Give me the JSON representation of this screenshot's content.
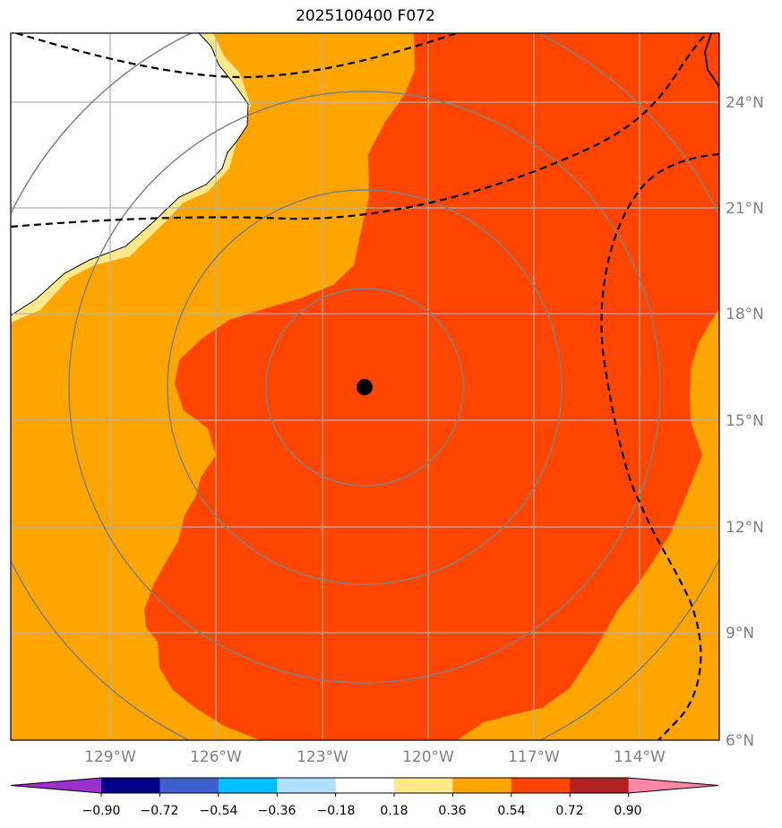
{
  "map": {
    "title": "2025100400 F072",
    "lat_labels": [
      "24°N",
      "21°N",
      "18°N",
      "15°N",
      "12°N",
      "9°N",
      "6°N"
    ],
    "lat_values": [
      24,
      21,
      18,
      15,
      12,
      9,
      6
    ],
    "lon_labels": [
      "129°W",
      "126°W",
      "123°W",
      "120°W",
      "117°W",
      "114°W"
    ],
    "lon_values": [
      -129,
      -126,
      -123,
      -120,
      -117,
      -114
    ],
    "storm_center": {
      "lat": 16.0,
      "lon": -121.7,
      "marker": "black-dot"
    },
    "range_rings": "concentric-circles",
    "boundaries": "dashed-lines",
    "coastline": "black-line"
  },
  "colorbar": {
    "tick_labels": [
      "−0.90",
      "−0.72",
      "−0.54",
      "−0.36",
      "−0.18",
      "0.18",
      "0.36",
      "0.54",
      "0.72",
      "0.90"
    ],
    "colors": [
      "#9932cc",
      "#00008b",
      "#3f5fcf",
      "#00bfff",
      "#b0e0ff",
      "#ffffff",
      "#ffe98a",
      "#ffa500",
      "#ff4500",
      "#b22222",
      "#ff88aa"
    ],
    "extend": "both"
  },
  "colors": {
    "land": "#ffffff",
    "band_036_054": "#ffa500",
    "band_054_072": "#ff4500",
    "band_018_036": "#ffe98a",
    "grid": "#b0b0b0",
    "rings": "#808080",
    "storm": "#000000"
  }
}
